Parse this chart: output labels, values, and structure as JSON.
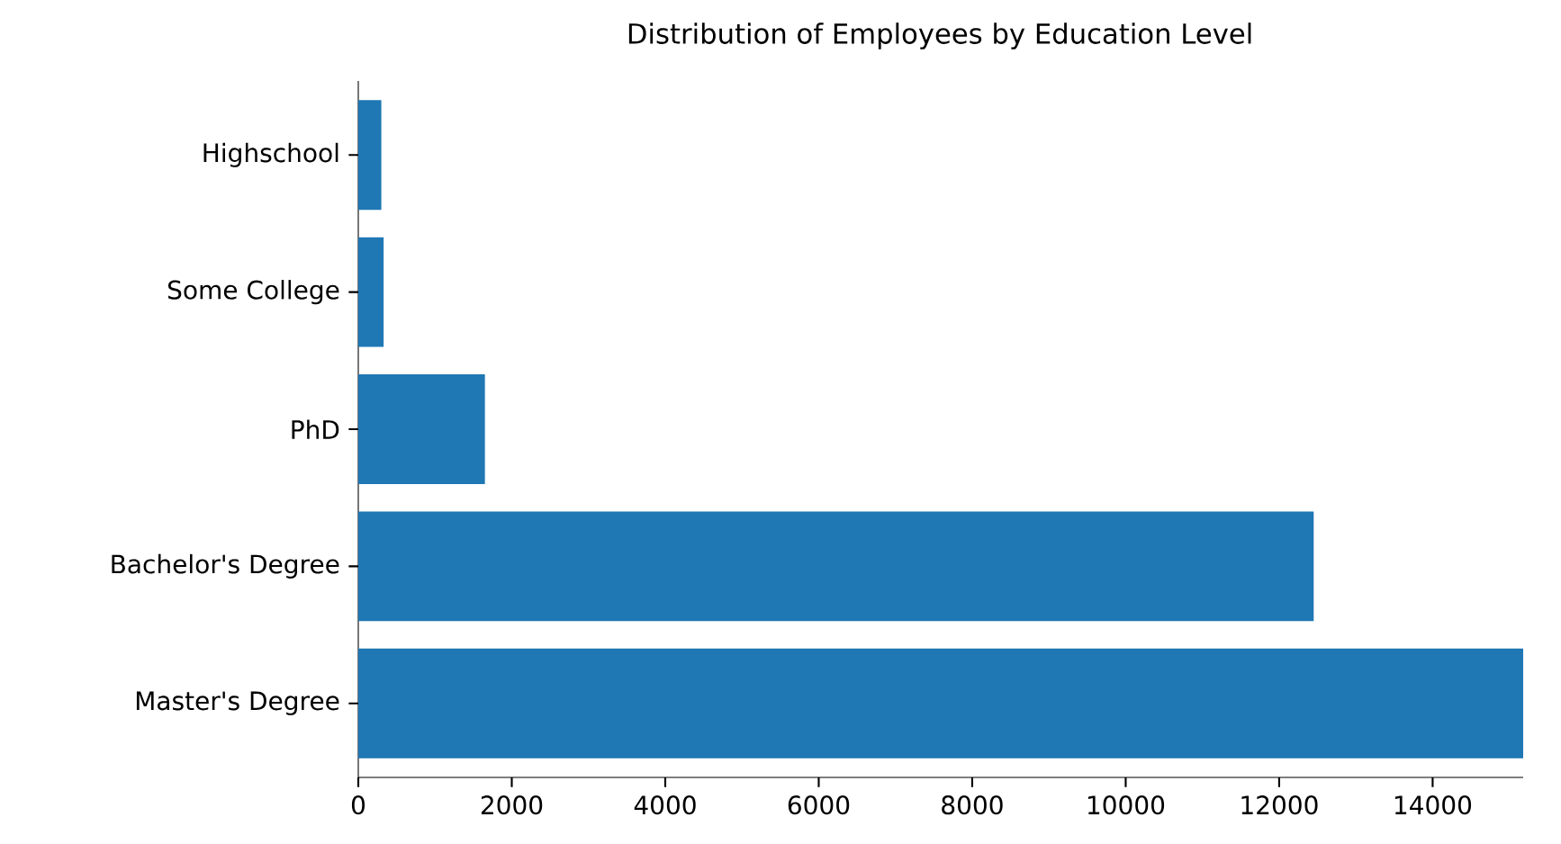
{
  "chart_data": {
    "type": "bar",
    "orientation": "horizontal",
    "title": "Distribution of Employees by Education Level",
    "categories": [
      "Highschool",
      "Some College",
      "PhD",
      "Bachelor's Degree",
      "Master's Degree"
    ],
    "values": [
      300,
      330,
      1650,
      12450,
      15180
    ],
    "color": "#1f77b4",
    "xlim": [
      0,
      15180
    ],
    "xticks": [
      0,
      2000,
      4000,
      6000,
      8000,
      10000,
      12000,
      14000
    ]
  }
}
